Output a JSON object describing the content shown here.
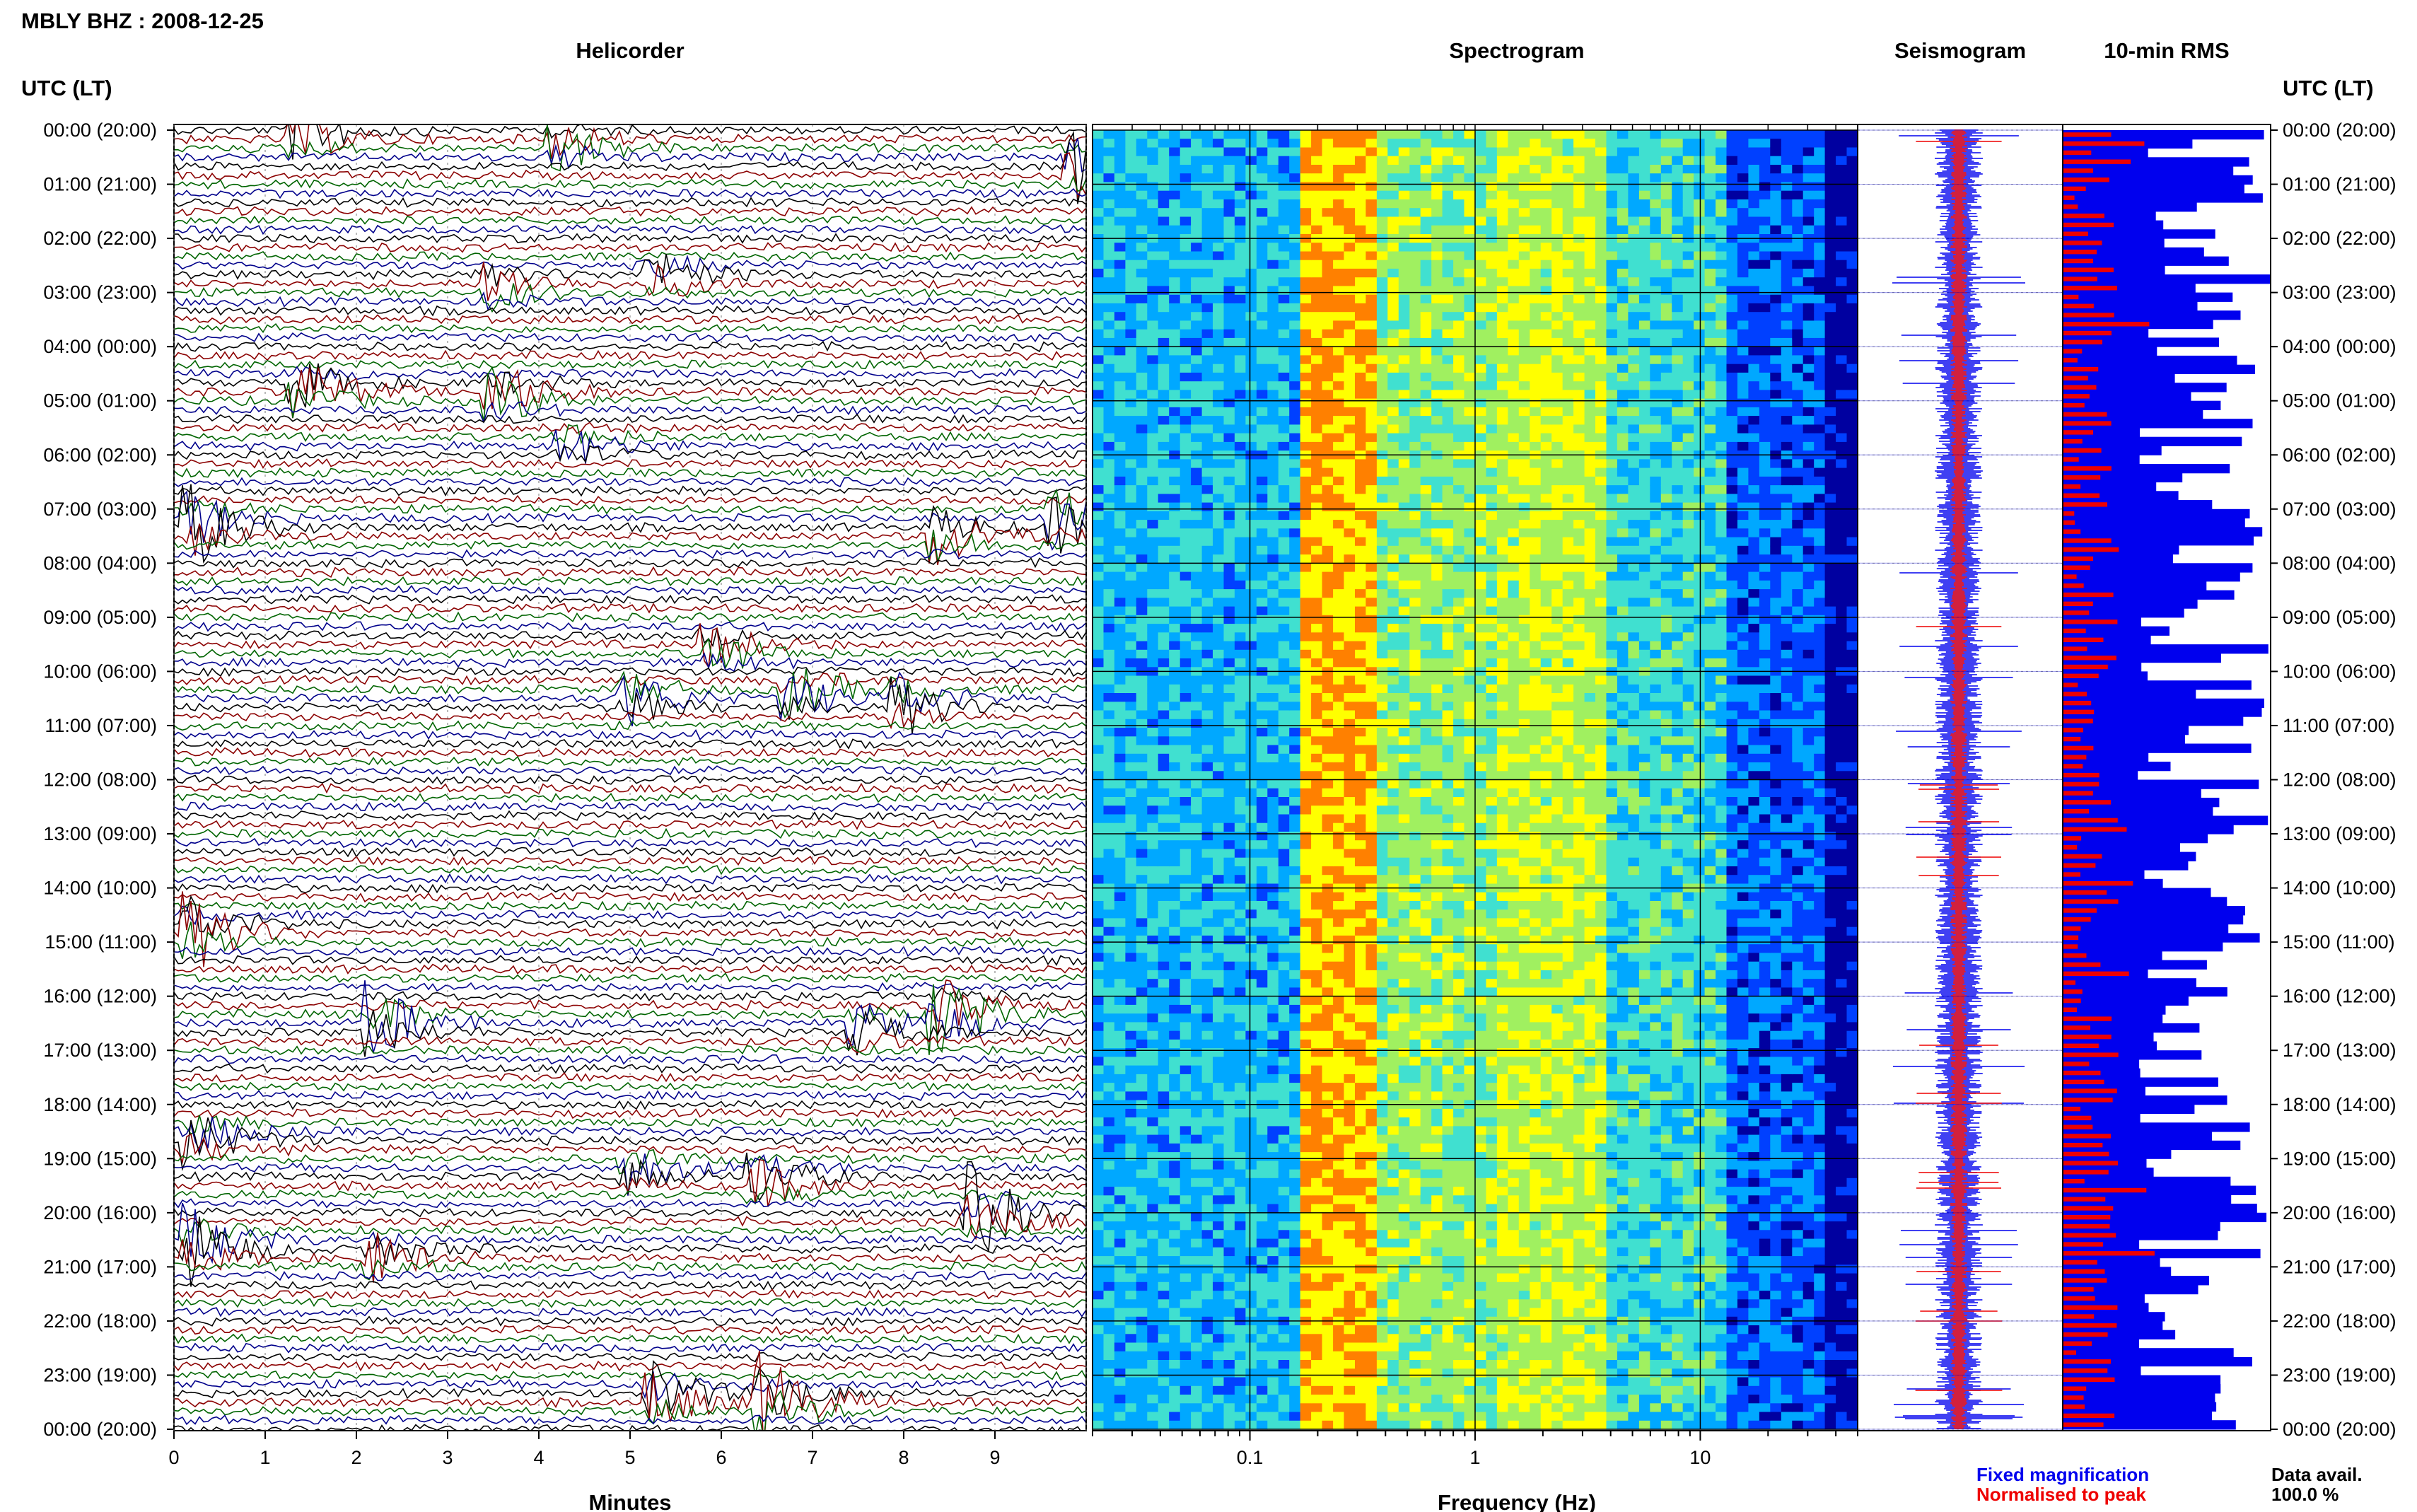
{
  "page_title": "MBLY BHZ : 2008-12-25",
  "colors": {
    "trace_cycle": [
      "#000000",
      "#8b0000",
      "#006400",
      "#00008b"
    ],
    "rms_fixed": "#0000ee",
    "rms_peak": "#ee0000"
  },
  "chart_data": [
    {
      "type": "line",
      "title": "Helicorder",
      "ylabel": "UTC (LT)",
      "xlabel": "Minutes",
      "xlim": [
        0,
        10
      ],
      "x_ticks": [
        "0",
        "1",
        "2",
        "3",
        "4",
        "5",
        "6",
        "7",
        "8",
        "9"
      ],
      "y_ticks_left": [
        "00:00 (20:00)",
        "01:00 (21:00)",
        "02:00 (22:00)",
        "03:00 (23:00)",
        "04:00 (00:00)",
        "05:00 (01:00)",
        "06:00 (02:00)",
        "07:00 (03:00)",
        "08:00 (04:00)",
        "09:00 (05:00)",
        "10:00 (06:00)",
        "11:00 (07:00)",
        "12:00 (08:00)",
        "13:00 (09:00)",
        "14:00 (10:00)",
        "15:00 (11:00)",
        "16:00 (12:00)",
        "17:00 (13:00)",
        "18:00 (14:00)",
        "19:00 (15:00)",
        "20:00 (16:00)",
        "21:00 (17:00)",
        "22:00 (18:00)",
        "23:00 (19:00)",
        "00:00 (20:00)"
      ],
      "rows_per_hour": 6,
      "bursts": [
        {
          "hour": 0.05,
          "minute": 1.4,
          "amp": 2.2,
          "color": 1
        },
        {
          "hour": 0.3,
          "minute": 4.2,
          "amp": 1.8,
          "color": 0
        },
        {
          "hour": 0.7,
          "minute": 9.9,
          "amp": 2.5,
          "color": 2
        },
        {
          "hour": 2.9,
          "minute": 3.5,
          "amp": 1.6,
          "color": 2
        },
        {
          "hour": 2.7,
          "minute": 5.3,
          "amp": 1.6,
          "color": 1
        },
        {
          "hour": 4.8,
          "minute": 1.4,
          "amp": 2.4,
          "color": 3
        },
        {
          "hour": 4.9,
          "minute": 3.5,
          "amp": 2.6,
          "color": 3
        },
        {
          "hour": 5.8,
          "minute": 4.3,
          "amp": 1.5,
          "color": 0
        },
        {
          "hour": 7.3,
          "minute": 0.2,
          "amp": 3.0,
          "color": 0
        },
        {
          "hour": 7.2,
          "minute": 9.7,
          "amp": 2.6,
          "color": 2
        },
        {
          "hour": 7.5,
          "minute": 8.4,
          "amp": 2.0,
          "color": 2
        },
        {
          "hour": 9.6,
          "minute": 5.9,
          "amp": 1.9,
          "color": 0
        },
        {
          "hour": 10.5,
          "minute": 5.0,
          "amp": 1.8,
          "color": 0
        },
        {
          "hour": 10.4,
          "minute": 6.8,
          "amp": 2.1,
          "color": 0
        },
        {
          "hour": 10.6,
          "minute": 8.0,
          "amp": 2.1,
          "color": 3
        },
        {
          "hour": 14.8,
          "minute": 0.2,
          "amp": 2.8,
          "color": 1
        },
        {
          "hour": 16.5,
          "minute": 2.2,
          "amp": 2.6,
          "color": 1
        },
        {
          "hour": 16.3,
          "minute": 8.4,
          "amp": 3.0,
          "color": 2
        },
        {
          "hour": 16.6,
          "minute": 7.5,
          "amp": 1.8,
          "color": 1
        },
        {
          "hour": 18.6,
          "minute": 0.2,
          "amp": 2.4,
          "color": 1
        },
        {
          "hour": 19.2,
          "minute": 5.0,
          "amp": 1.8,
          "color": 3
        },
        {
          "hour": 19.4,
          "minute": 6.4,
          "amp": 2.2,
          "color": 0
        },
        {
          "hour": 20.0,
          "minute": 8.8,
          "amp": 3.0,
          "color": 2
        },
        {
          "hour": 20.6,
          "minute": 0.2,
          "amp": 3.0,
          "color": 0
        },
        {
          "hour": 20.8,
          "minute": 2.2,
          "amp": 1.8,
          "color": 2
        },
        {
          "hour": 23.5,
          "minute": 6.5,
          "amp": 3.0,
          "color": 2
        },
        {
          "hour": 23.4,
          "minute": 5.3,
          "amp": 2.5,
          "color": 3
        }
      ]
    },
    {
      "type": "heatmap",
      "title": "Spectrogram",
      "xlabel": "Frequency (Hz)",
      "x_scale": "log",
      "xlim": [
        0.02,
        50
      ],
      "x_tick_labels": [
        "0.1",
        "1",
        "10"
      ],
      "x_tick_values": [
        0.1,
        1,
        10
      ],
      "colormap": [
        "#0000a0",
        "#0040ff",
        "#00a8ff",
        "#40e0d0",
        "#a0f060",
        "#ffff00",
        "#ff8000",
        "#ff0000"
      ]
    },
    {
      "type": "line",
      "title": "Seismogram",
      "legend": [
        "Fixed magnification",
        "Normalised to peak"
      ]
    },
    {
      "type": "bar",
      "title": "10-min RMS",
      "y_ticks_right": [
        "00:00 (20:00)",
        "01:00 (21:00)",
        "02:00 (22:00)",
        "03:00 (23:00)",
        "04:00 (00:00)",
        "05:00 (01:00)",
        "06:00 (02:00)",
        "07:00 (03:00)",
        "08:00 (04:00)",
        "09:00 (05:00)",
        "10:00 (06:00)",
        "11:00 (07:00)",
        "12:00 (08:00)",
        "13:00 (09:00)",
        "14:00 (10:00)",
        "15:00 (11:00)",
        "16:00 (12:00)",
        "17:00 (13:00)",
        "18:00 (14:00)",
        "19:00 (15:00)",
        "20:00 (16:00)",
        "21:00 (17:00)",
        "22:00 (18:00)",
        "23:00 (19:00)",
        "00:00 (20:00)"
      ],
      "data_avail_label": "Data avail.",
      "data_avail_value": "100.0 %"
    }
  ]
}
